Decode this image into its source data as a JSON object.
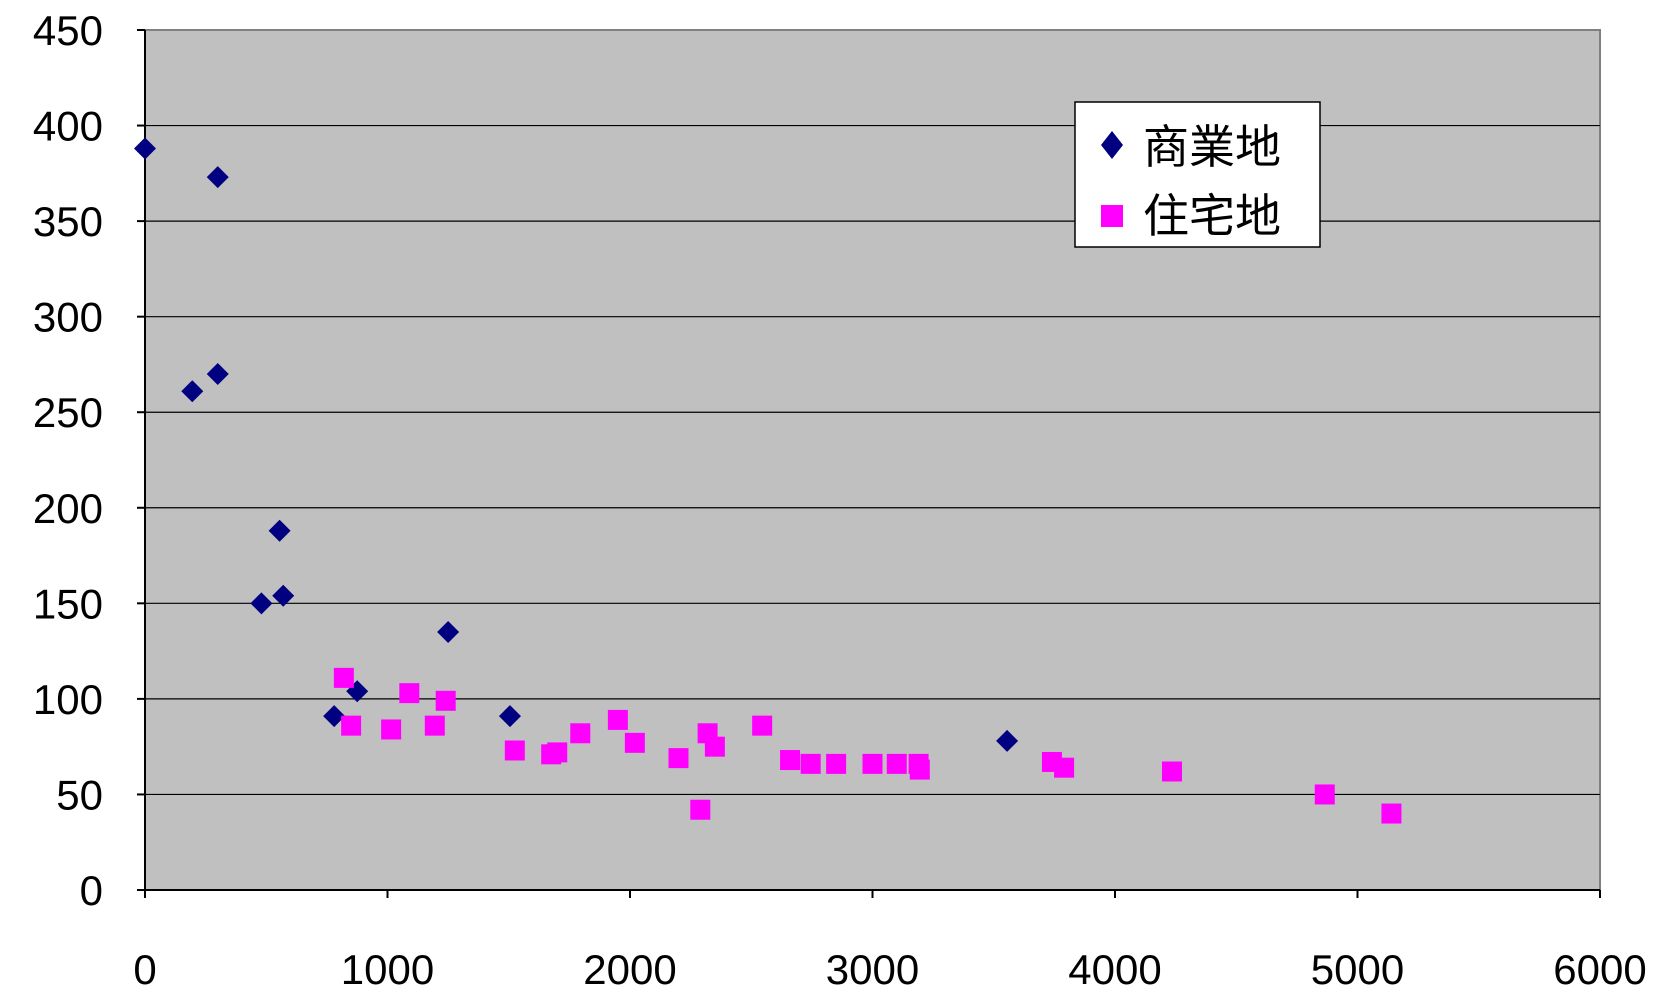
{
  "chart_data": {
    "type": "scatter",
    "title": "",
    "xlabel": "",
    "ylabel": "",
    "xlim": [
      0,
      6000
    ],
    "ylim": [
      0,
      450
    ],
    "xticks": [
      0,
      1000,
      2000,
      3000,
      4000,
      5000,
      6000
    ],
    "yticks": [
      0,
      50,
      100,
      150,
      200,
      250,
      300,
      350,
      400,
      450
    ],
    "grid": "horizontal",
    "plot_background": "#C0C0C0",
    "legend_position": "top-right",
    "series": [
      {
        "name": "商業地",
        "marker": "diamond",
        "color": "#000080",
        "points": [
          [
            0,
            388
          ],
          [
            195,
            261
          ],
          [
            300,
            373
          ],
          [
            300,
            270
          ],
          [
            480,
            150
          ],
          [
            555,
            188
          ],
          [
            570,
            154
          ],
          [
            780,
            91
          ],
          [
            875,
            104
          ],
          [
            1250,
            135
          ],
          [
            1505,
            91
          ],
          [
            3555,
            78
          ]
        ]
      },
      {
        "name": "住宅地",
        "marker": "square",
        "color": "#FF00FF",
        "points": [
          [
            820,
            111
          ],
          [
            850,
            86
          ],
          [
            1015,
            84
          ],
          [
            1090,
            103
          ],
          [
            1195,
            86
          ],
          [
            1240,
            99
          ],
          [
            1525,
            73
          ],
          [
            1675,
            71
          ],
          [
            1700,
            72
          ],
          [
            1795,
            82
          ],
          [
            1950,
            89
          ],
          [
            2020,
            77
          ],
          [
            2200,
            69
          ],
          [
            2290,
            42
          ],
          [
            2320,
            82
          ],
          [
            2350,
            75
          ],
          [
            2545,
            86
          ],
          [
            2660,
            68
          ],
          [
            2745,
            66
          ],
          [
            2850,
            66
          ],
          [
            3000,
            66
          ],
          [
            3100,
            66
          ],
          [
            3190,
            66
          ],
          [
            3195,
            63
          ],
          [
            3740,
            67
          ],
          [
            3790,
            64
          ],
          [
            4235,
            62
          ],
          [
            4865,
            50
          ],
          [
            5140,
            40
          ]
        ]
      }
    ]
  }
}
